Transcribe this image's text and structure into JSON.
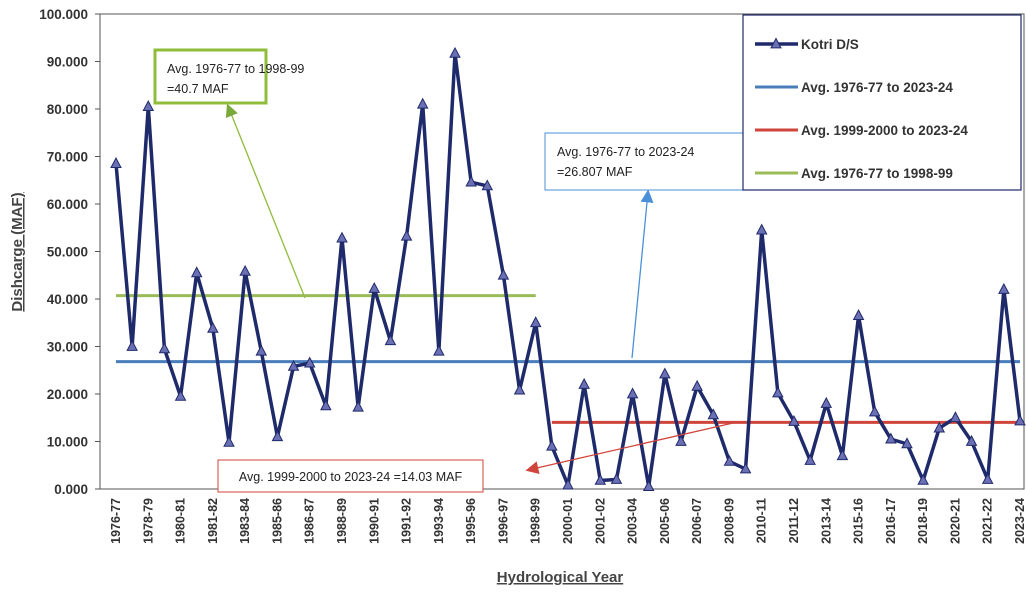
{
  "chart_data": {
    "type": "line",
    "xlabel": "Hydrological Year",
    "ylabel": "Dishcarge (MAF)",
    "categories": [
      "1976-77",
      null,
      "1978-79",
      null,
      "1980-81",
      null,
      "1981-82",
      null,
      "1983-84",
      null,
      "1985-86",
      null,
      "1986-87",
      null,
      "1988-89",
      null,
      "1990-91",
      null,
      "1991-92",
      null,
      "1993-94",
      null,
      "1995-96",
      null,
      "1996-97",
      null,
      "1998-99",
      null,
      "2000-01",
      null,
      "2001-02",
      null,
      "2003-04",
      null,
      "2005-06",
      null,
      "2006-07",
      null,
      "2008-09",
      null,
      "2010-11",
      null,
      "2011-12",
      null,
      "2013-14",
      null,
      "2015-16",
      null,
      "2016-17",
      null,
      "2018-19",
      null,
      "2020-21",
      null,
      "2021-22",
      null,
      "2023-24"
    ],
    "ylim": [
      0,
      100
    ],
    "yticks": [
      {
        "value": 0,
        "label": "0.000"
      },
      {
        "value": 10,
        "label": "10.000"
      },
      {
        "value": 20,
        "label": "20.000"
      },
      {
        "value": 30,
        "label": "30.000"
      },
      {
        "value": 40,
        "label": "40.000"
      },
      {
        "value": 50,
        "label": "50.000"
      },
      {
        "value": 60,
        "label": "60.000"
      },
      {
        "value": 70,
        "label": "70.000"
      },
      {
        "value": 80,
        "label": "80.000"
      },
      {
        "value": 90,
        "label": "90.000"
      },
      {
        "value": 100,
        "label": "100.000"
      }
    ],
    "legend": "top-right",
    "series": [
      {
        "name": "Kotri D/S",
        "color": "#1f2a6b",
        "marker": "triangle",
        "values": [
          68.5,
          30,
          80.5,
          29.5,
          19.5,
          45.5,
          33.8,
          9.8,
          45.8,
          29,
          11,
          25.8,
          26.5,
          17.5,
          52.8,
          17.2,
          42.2,
          31.2,
          53.2,
          81,
          29,
          91.7,
          64.6,
          63.8,
          45,
          20.8,
          35,
          9,
          0.8,
          22,
          1.8,
          2,
          20,
          0.5,
          24.2,
          10,
          21.6,
          15.6,
          5.8,
          4.2,
          54.5,
          20.2,
          14.2,
          6,
          18,
          7,
          36.5,
          16.2,
          10.5,
          9.5,
          1.8,
          12.8,
          15,
          10,
          2,
          42,
          14.3
        ]
      },
      {
        "name": "Avg. 1976-77 to 2023-24",
        "color": "#4a7ebb",
        "values": [
          26.807,
          26.807,
          26.807,
          26.807,
          26.807,
          26.807,
          26.807,
          26.807,
          26.807,
          26.807,
          26.807,
          26.807,
          26.807,
          26.807,
          26.807,
          26.807,
          26.807,
          26.807,
          26.807,
          26.807,
          26.807,
          26.807,
          26.807,
          26.807,
          26.807,
          26.807,
          26.807,
          26.807,
          26.807,
          26.807,
          26.807,
          26.807,
          26.807,
          26.807,
          26.807,
          26.807,
          26.807,
          26.807,
          26.807,
          26.807,
          26.807,
          26.807,
          26.807,
          26.807,
          26.807,
          26.807,
          26.807,
          26.807,
          26.807,
          26.807,
          26.807,
          26.807,
          26.807,
          26.807,
          26.807,
          26.807,
          26.807
        ]
      },
      {
        "name": "Avg. 1999-2000 to 2023-24",
        "color": "#d0453b",
        "values": [
          null,
          null,
          null,
          null,
          null,
          null,
          null,
          null,
          null,
          null,
          null,
          null,
          null,
          null,
          null,
          null,
          null,
          null,
          null,
          null,
          null,
          null,
          null,
          null,
          null,
          null,
          null,
          14.03,
          14.03,
          14.03,
          14.03,
          14.03,
          14.03,
          14.03,
          14.03,
          14.03,
          14.03,
          14.03,
          14.03,
          14.03,
          14.03,
          14.03,
          14.03,
          14.03,
          14.03,
          14.03,
          14.03,
          14.03,
          14.03,
          14.03,
          14.03,
          14.03,
          14.03,
          14.03,
          14.03,
          14.03,
          14.03
        ]
      },
      {
        "name": "Avg. 1976-77 to 1998-99",
        "color": "#9bbb59",
        "values": [
          40.7,
          40.7,
          40.7,
          40.7,
          40.7,
          40.7,
          40.7,
          40.7,
          40.7,
          40.7,
          40.7,
          40.7,
          40.7,
          40.7,
          40.7,
          40.7,
          40.7,
          40.7,
          40.7,
          40.7,
          40.7,
          40.7,
          40.7,
          40.7,
          40.7,
          40.7,
          40.7,
          null,
          null,
          null,
          null,
          null,
          null,
          null,
          null,
          null,
          null,
          null,
          null,
          null,
          null,
          null,
          null,
          null,
          null,
          null,
          null,
          null,
          null,
          null,
          null,
          null,
          null,
          null,
          null,
          null,
          null
        ]
      }
    ],
    "annotations": [
      {
        "lines": [
          "Avg. 1976-77 to 1998-99",
          "=40.7 MAF"
        ],
        "color": "#8fbc3a"
      },
      {
        "lines": [
          "Avg. 1976-77 to 2023-24",
          "=26.807 MAF"
        ],
        "color": "#4a90d9"
      },
      {
        "lines": [
          "Avg. 1999-2000 to 2023-24 =14.03 MAF"
        ],
        "color": "#d0453b"
      }
    ]
  }
}
